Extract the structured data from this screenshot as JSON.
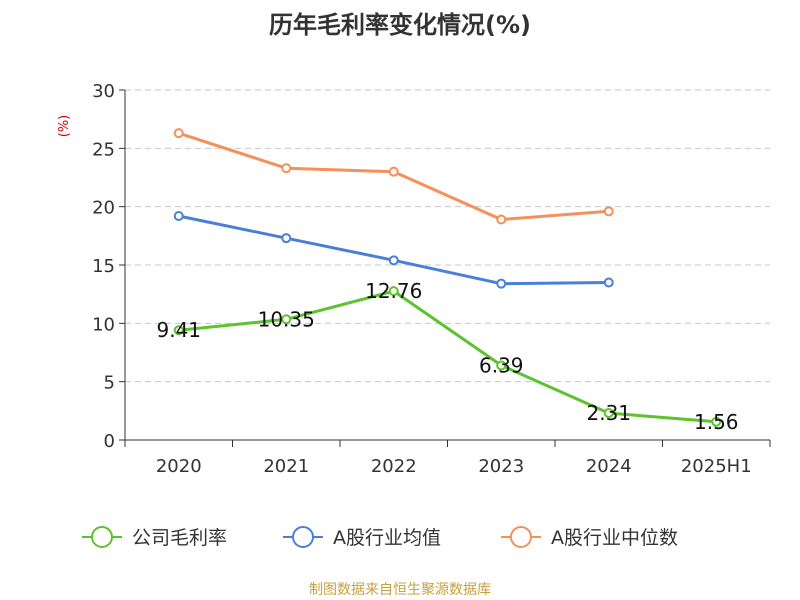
{
  "chart_data": {
    "type": "line",
    "title": "历年毛利率变化情况(%)",
    "xlabel": "",
    "ylabel": "(%)",
    "categories": [
      "2020",
      "2021",
      "2022",
      "2023",
      "2024",
      "2025H1"
    ],
    "ylim": [
      0,
      30
    ],
    "yticks": [
      0,
      5,
      10,
      15,
      20,
      25,
      30
    ],
    "grid": true,
    "legend_position": "bottom",
    "series": [
      {
        "name": "公司毛利率",
        "color": "#5cc22e",
        "values": [
          9.41,
          10.35,
          12.76,
          6.39,
          2.31,
          1.56
        ],
        "labels": [
          "9.41",
          "10.35",
          "12.76",
          "6.39",
          "2.31",
          "1.56"
        ]
      },
      {
        "name": "A股行业均值",
        "color": "#4a7fd8",
        "values": [
          19.2,
          17.3,
          15.4,
          13.4,
          13.5,
          null
        ]
      },
      {
        "name": "A股行业中位数",
        "color": "#f5905a",
        "values": [
          26.3,
          23.3,
          23.0,
          18.9,
          19.6,
          null
        ]
      }
    ]
  },
  "source": "制图数据来自恒生聚源数据库"
}
